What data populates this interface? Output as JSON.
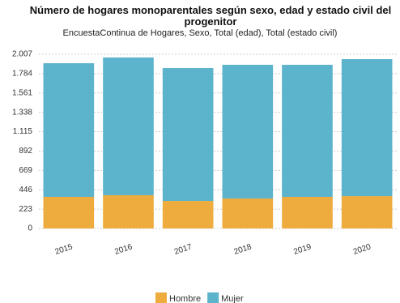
{
  "chart_data": {
    "type": "stacked_bar",
    "title": "Número de hogares monoparentales según sexo, edad y estado civil del progenitor",
    "subtitle": "EncuestaContinua de Hogares, Sexo, Total (edad), Total (estado civil)",
    "categories": [
      "2015",
      "2016",
      "2017",
      "2018",
      "2019",
      "2020"
    ],
    "series": [
      {
        "name": "Hombre",
        "color": "#eeab3e",
        "values": [
          364,
          383,
          317,
          345,
          364,
          373
        ]
      },
      {
        "name": "Mujer",
        "color": "#5cb3cc",
        "values": [
          1540,
          1587,
          1531,
          1541,
          1522,
          1578
        ]
      }
    ],
    "ylim": [
      0,
      2007
    ],
    "yticks": [
      0,
      223,
      446,
      669,
      892,
      {
        "value": 1115,
        "label": "1.115"
      },
      {
        "value": 1338,
        "label": "1.338"
      },
      {
        "value": 1561,
        "label": "1.561"
      },
      {
        "value": 1784,
        "label": "1.784"
      },
      {
        "value": 2007,
        "label": "2.007"
      }
    ],
    "grid": true,
    "legend": "bottom"
  }
}
